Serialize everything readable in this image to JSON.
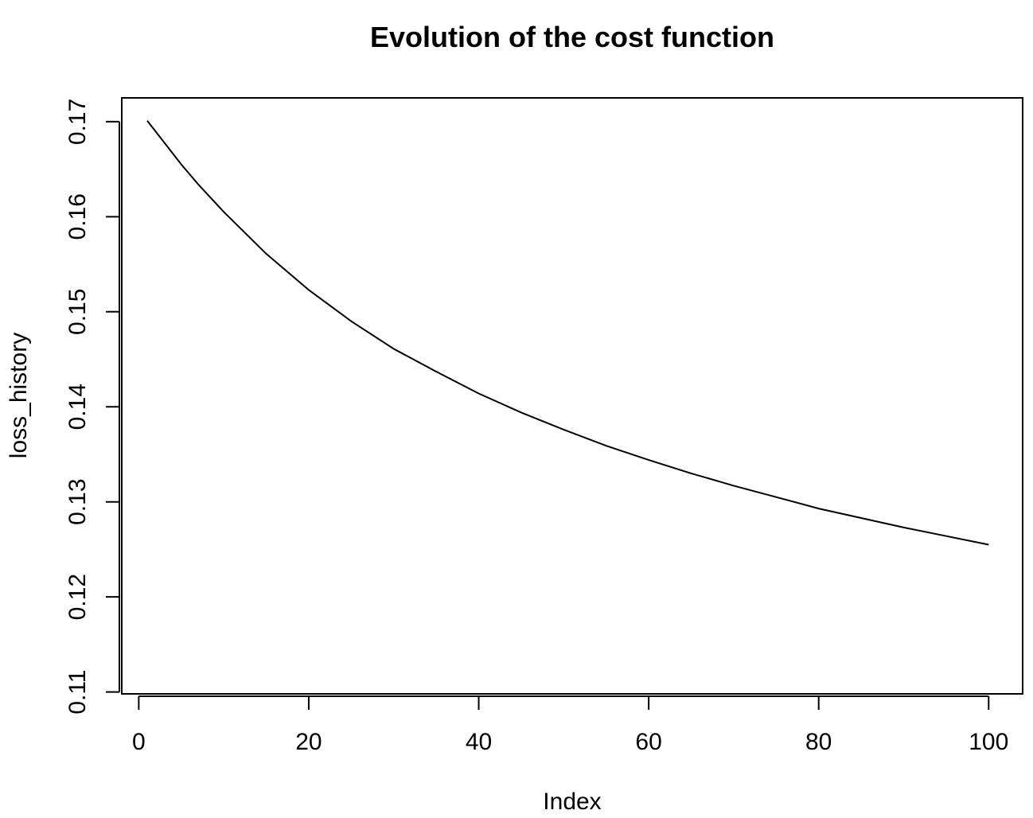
{
  "chart_data": {
    "type": "line",
    "title": "Evolution of the cost function",
    "xlabel": "Index",
    "ylabel": "loss_history",
    "xlim": [
      -2,
      104
    ],
    "ylim": [
      0.1098,
      0.1725
    ],
    "x_ticks": [
      0,
      20,
      40,
      60,
      80,
      100
    ],
    "x_tick_labels": [
      "0",
      "20",
      "40",
      "60",
      "80",
      "100"
    ],
    "y_ticks": [
      0.11,
      0.12,
      0.13,
      0.14,
      0.15,
      0.16,
      0.17
    ],
    "y_tick_labels": [
      "0.11",
      "0.12",
      "0.13",
      "0.14",
      "0.15",
      "0.16",
      "0.17"
    ],
    "grid": false,
    "line_color": "#000000",
    "series": [
      {
        "x": [
          1,
          3,
          5,
          7,
          10,
          15,
          20,
          25,
          30,
          35,
          40,
          45,
          50,
          55,
          60,
          65,
          70,
          75,
          80,
          85,
          90,
          95,
          100
        ],
        "values": [
          0.1701,
          0.1678,
          0.1655,
          0.1634,
          0.1605,
          0.1561,
          0.1523,
          0.149,
          0.1461,
          0.1437,
          0.1414,
          0.1394,
          0.1376,
          0.1359,
          0.1344,
          0.133,
          0.1317,
          0.1305,
          0.1293,
          0.1283,
          0.1273,
          0.1264,
          0.1255
        ]
      }
    ]
  }
}
